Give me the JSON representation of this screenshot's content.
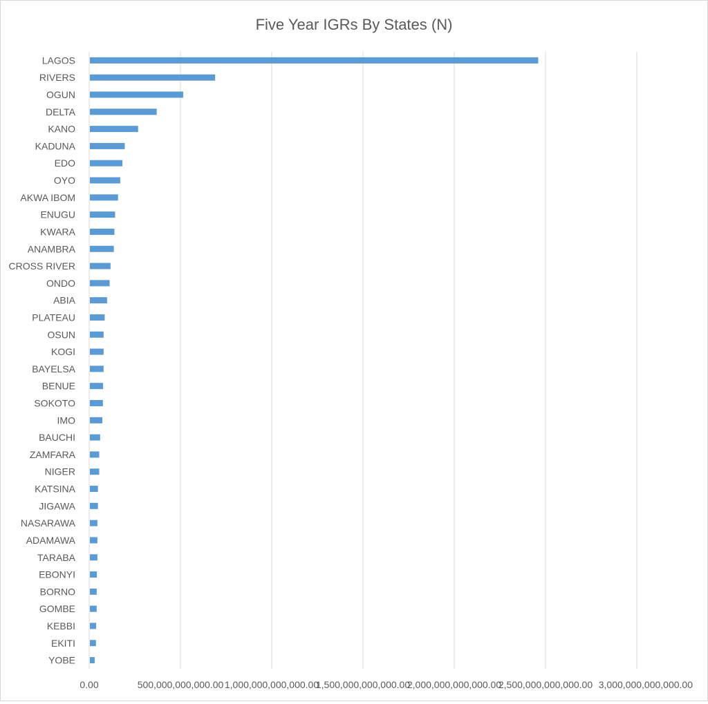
{
  "chart_data": {
    "type": "bar",
    "orientation": "horizontal",
    "title": "Five Year IGRs By States (N)",
    "xlabel": "",
    "ylabel": "",
    "xlim": [
      0,
      3000000000000
    ],
    "grid": true,
    "legend": "none",
    "bar_color": "#5b9bd5",
    "x_ticks": [
      0,
      500000000000,
      1000000000000,
      1500000000000,
      2000000000000,
      2500000000000,
      3000000000000
    ],
    "x_tick_labels": [
      "0.00",
      "500,000,000,000.00",
      "1,000,000,000,000.00",
      "1,500,000,000,000.00",
      "2,000,000,000,000.00",
      "2,500,000,000,000.00",
      "3,000,000,000,000.00"
    ],
    "categories": [
      "LAGOS",
      "RIVERS",
      "OGUN",
      "DELTA",
      "KANO",
      "KADUNA",
      "EDO",
      "OYO",
      "AKWA IBOM",
      "ENUGU",
      "KWARA",
      "ANAMBRA",
      "CROSS RIVER",
      "ONDO",
      "ABIA",
      "PLATEAU",
      "OSUN",
      "KOGI",
      "BAYELSA",
      "BENUE",
      "SOKOTO",
      "IMO",
      "BAUCHI",
      "ZAMFARA",
      "NIGER",
      "KATSINA",
      "JIGAWA",
      "NASARAWA",
      "ADAMAWA",
      "TARABA",
      "EBONYI",
      "BORNO",
      "GOMBE",
      "KEBBI",
      "EKITI",
      "YOBE"
    ],
    "values": [
      2460000000000,
      690000000000,
      515000000000,
      370000000000,
      268000000000,
      195000000000,
      182000000000,
      170000000000,
      158000000000,
      142000000000,
      138000000000,
      135000000000,
      117000000000,
      112000000000,
      98000000000,
      85000000000,
      79000000000,
      79000000000,
      79000000000,
      76000000000,
      75000000000,
      72000000000,
      60000000000,
      55000000000,
      55000000000,
      48000000000,
      48000000000,
      45000000000,
      45000000000,
      45000000000,
      42000000000,
      41000000000,
      41000000000,
      38000000000,
      37000000000,
      30000000000
    ]
  }
}
